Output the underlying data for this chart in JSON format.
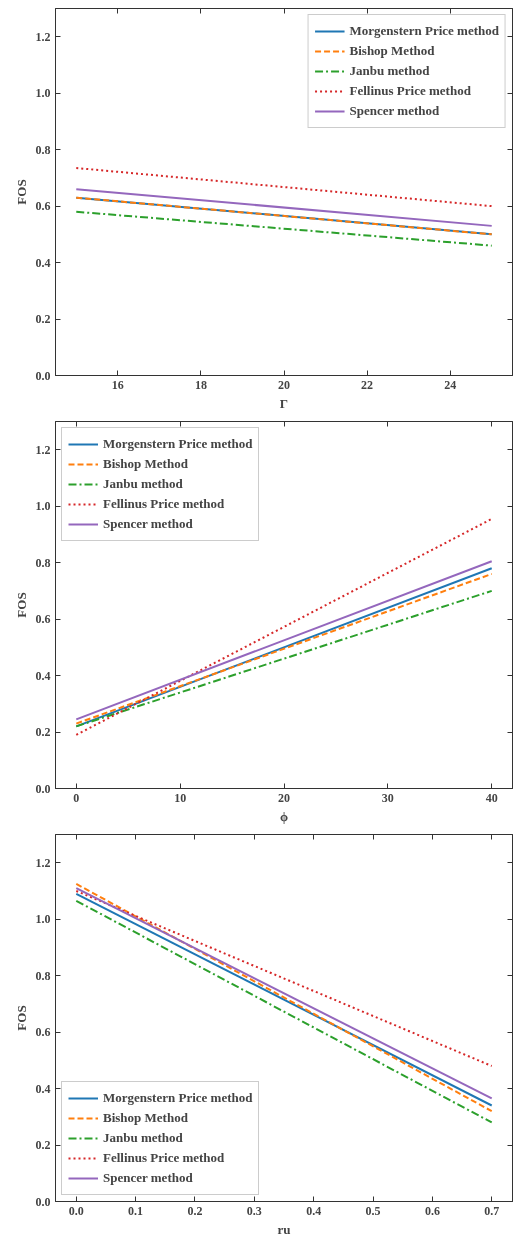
{
  "chart_data": [
    {
      "type": "line",
      "xlabel": "Γ",
      "ylabel": "FOS",
      "x": [
        15,
        25
      ],
      "xlim": [
        14.5,
        25.5
      ],
      "xticks": [
        16,
        18,
        20,
        22,
        24
      ],
      "ylim": [
        0,
        1.3
      ],
      "yticks": [
        {
          "value": 0,
          "label": "0.0"
        },
        {
          "value": 0.2,
          "label": "0.2"
        },
        {
          "value": 0.4,
          "label": "0.4"
        },
        {
          "value": 0.6,
          "label": "0.6"
        },
        {
          "value": 0.8,
          "label": "0.8"
        },
        {
          "value": 1.0,
          "label": "1.0"
        },
        {
          "value": 1.2,
          "label": "1.2"
        }
      ],
      "legend": "top right",
      "series": [
        {
          "name": "Morgenstern Price method",
          "color": "#1f77b4",
          "line_style": "solid",
          "values": [
            0.63,
            0.5
          ]
        },
        {
          "name": "Bishop Method",
          "color": "#ff7f0e",
          "line_style": "dashed",
          "values": [
            0.63,
            0.5
          ]
        },
        {
          "name": "Janbu method",
          "color": "#2ca02c",
          "line_style": "dashdot",
          "values": [
            0.58,
            0.46
          ]
        },
        {
          "name": "Fellinus Price method",
          "color": "#d62728",
          "line_style": "dotted",
          "values": [
            0.735,
            0.6
          ]
        },
        {
          "name": "Spencer method",
          "color": "#9467bd",
          "line_style": "solid",
          "values": [
            0.66,
            0.53
          ]
        }
      ]
    },
    {
      "type": "line",
      "xlabel": "ϕ",
      "ylabel": "FOS",
      "x": [
        0,
        40
      ],
      "xlim": [
        -2,
        42
      ],
      "xticks": [
        0,
        10,
        20,
        30,
        40
      ],
      "ylim": [
        0,
        1.3
      ],
      "yticks": [
        {
          "value": 0,
          "label": "0.0"
        },
        {
          "value": 0.2,
          "label": "0.2"
        },
        {
          "value": 0.4,
          "label": "0.4"
        },
        {
          "value": 0.6,
          "label": "0.6"
        },
        {
          "value": 0.8,
          "label": "0.8"
        },
        {
          "value": 1.0,
          "label": "1.0"
        },
        {
          "value": 1.2,
          "label": "1.2"
        }
      ],
      "legend": "top left",
      "series": [
        {
          "name": "Morgenstern Price method",
          "color": "#1f77b4",
          "line_style": "solid",
          "values": [
            0.22,
            0.78
          ]
        },
        {
          "name": "Bishop Method",
          "color": "#ff7f0e",
          "line_style": "dashed",
          "values": [
            0.23,
            0.76
          ]
        },
        {
          "name": "Janbu method",
          "color": "#2ca02c",
          "line_style": "dashdot",
          "values": [
            0.22,
            0.7
          ]
        },
        {
          "name": "Fellinus Price method",
          "color": "#d62728",
          "line_style": "dotted",
          "values": [
            0.19,
            0.955
          ]
        },
        {
          "name": "Spencer method",
          "color": "#9467bd",
          "line_style": "solid",
          "values": [
            0.245,
            0.805
          ]
        }
      ]
    },
    {
      "type": "line",
      "xlabel": "ru",
      "ylabel": "FOS",
      "x": [
        0,
        0.7
      ],
      "xlim": [
        -0.035,
        0.735
      ],
      "xticks": [
        {
          "value": 0,
          "label": "0.0"
        },
        0.1,
        0.2,
        0.3,
        0.4,
        0.5,
        0.6,
        0.7
      ],
      "ylim": [
        0,
        1.3
      ],
      "yticks": [
        {
          "value": 0,
          "label": "0.0"
        },
        {
          "value": 0.2,
          "label": "0.2"
        },
        {
          "value": 0.4,
          "label": "0.4"
        },
        {
          "value": 0.6,
          "label": "0.6"
        },
        {
          "value": 0.8,
          "label": "0.8"
        },
        {
          "value": 1.0,
          "label": "1.0"
        },
        {
          "value": 1.2,
          "label": "1.2"
        }
      ],
      "legend": "bottom left",
      "series": [
        {
          "name": "Morgenstern Price method",
          "color": "#1f77b4",
          "line_style": "solid",
          "values": [
            1.09,
            0.34
          ]
        },
        {
          "name": "Bishop Method",
          "color": "#ff7f0e",
          "line_style": "dashed",
          "values": [
            1.125,
            0.32
          ]
        },
        {
          "name": "Janbu method",
          "color": "#2ca02c",
          "line_style": "dashdot",
          "values": [
            1.065,
            0.28
          ]
        },
        {
          "name": "Fellinus Price method",
          "color": "#d62728",
          "line_style": "dotted",
          "values": [
            1.1,
            0.48
          ]
        },
        {
          "name": "Spencer method",
          "color": "#9467bd",
          "line_style": "solid",
          "values": [
            1.11,
            0.365
          ]
        }
      ]
    }
  ]
}
